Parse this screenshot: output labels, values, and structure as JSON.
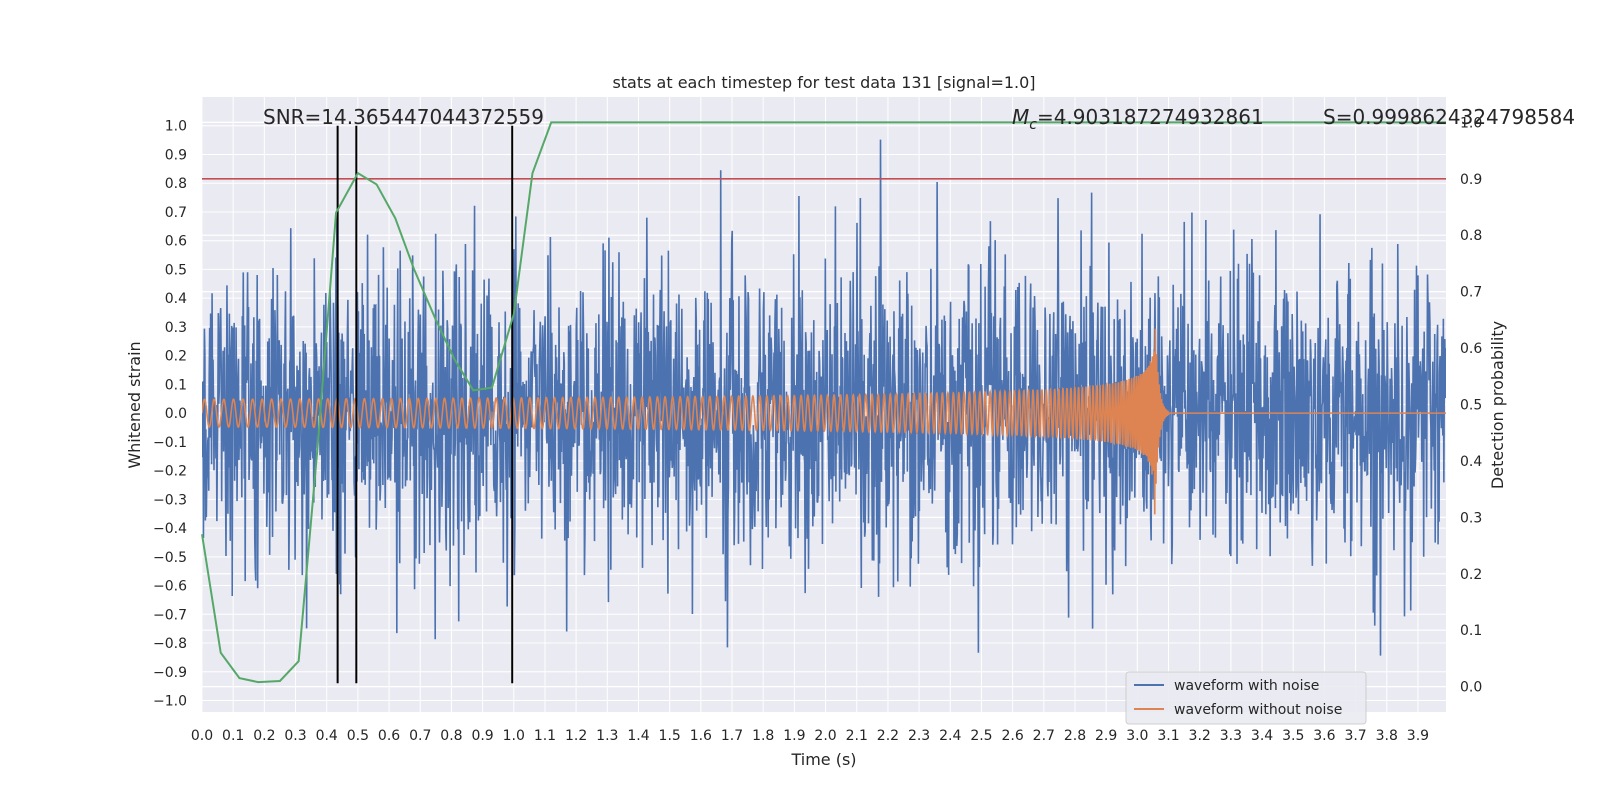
{
  "chart_data": {
    "type": "line",
    "title": "stats at each timestep for test data 131 [signal=1.0]",
    "xlabel": "Time (s)",
    "ylabel": "Whitened strain",
    "y2label": "Detection probability",
    "xlim": [
      0.0,
      3.99
    ],
    "ylim": [
      -1.04,
      1.1
    ],
    "y2lim": [
      -0.045,
      1.045
    ],
    "x_ticks": [
      0.0,
      0.1,
      0.2,
      0.3,
      0.4,
      0.5,
      0.6,
      0.7,
      0.8,
      0.9,
      1.0,
      1.1,
      1.2,
      1.3,
      1.4,
      1.5,
      1.6,
      1.7,
      1.8,
      1.9,
      2.0,
      2.1,
      2.2,
      2.3,
      2.4,
      2.5,
      2.6,
      2.7,
      2.8,
      2.9,
      3.0,
      3.1,
      3.2,
      3.3,
      3.4,
      3.5,
      3.6,
      3.7,
      3.8,
      3.9
    ],
    "x_tick_labels": [
      "0.0",
      "0.1",
      "0.2",
      "0.3",
      "0.4",
      "0.5",
      "0.6",
      "0.7",
      "0.8",
      "0.9",
      "1.0",
      "1.1",
      "1.2",
      "1.3",
      "1.4",
      "1.5",
      "1.6",
      "1.7",
      "1.8",
      "1.9",
      "2.0",
      "2.1",
      "2.2",
      "2.3",
      "2.4",
      "2.5",
      "2.6",
      "2.7",
      "2.8",
      "2.9",
      "3.0",
      "3.1",
      "3.2",
      "3.3",
      "3.4",
      "3.5",
      "3.6",
      "3.7",
      "3.8",
      "3.9"
    ],
    "y_ticks": [
      1.0,
      0.9,
      0.8,
      0.7,
      0.6,
      0.5,
      0.4,
      0.3,
      0.2,
      0.1,
      0.0,
      -0.1,
      -0.2,
      -0.3,
      -0.4,
      -0.5,
      -0.6,
      -0.7,
      -0.8,
      -0.9,
      -1.0
    ],
    "y_tick_labels": [
      "1.0",
      "0.9",
      "0.8",
      "0.7",
      "0.6",
      "0.5",
      "0.4",
      "0.3",
      "0.2",
      "0.1",
      "0.0",
      "−0.1",
      "−0.2",
      "−0.3",
      "−0.4",
      "−0.5",
      "−0.6",
      "−0.7",
      "−0.8",
      "−0.9",
      "−1.0"
    ],
    "y2_ticks": [
      1.0,
      0.9,
      0.8,
      0.7,
      0.6,
      0.5,
      0.4,
      0.3,
      0.2,
      0.1,
      0.0
    ],
    "y2_tick_labels": [
      "1.0",
      "0.9",
      "0.8",
      "0.7",
      "0.6",
      "0.5",
      "0.4",
      "0.3",
      "0.2",
      "0.1",
      "0.0"
    ],
    "grid": true,
    "legend": {
      "placement": "lower-right",
      "entries": [
        "waveform with noise",
        "waveform without noise"
      ]
    },
    "annotations": {
      "snr_text": "SNR=14.365447044372559",
      "mc_symbol": "M",
      "mc_subscript": "c",
      "mc_value": "=4.903187274932861",
      "s_text": "S=0.9998624324798584"
    },
    "series": [
      {
        "name": "waveform with noise",
        "axis": "left",
        "color": "#4c72b0",
        "description_values": {
          "sample_count": 0
        },
        "noise_seed": 131,
        "noise_sigma": 0.25,
        "x_range": [
          0.0,
          4.0
        ]
      },
      {
        "name": "waveform without noise",
        "axis": "left",
        "color": "#dd8452",
        "chirp": {
          "t_merger": 3.055,
          "amplitude_start": 0.048,
          "amplitude_peak": 0.38,
          "cycles_start_per_second": 32,
          "ringdown_end": 3.1
        }
      },
      {
        "name": "Detection probability",
        "axis": "right",
        "color": "#55a868",
        "x": [
          0.0,
          0.06,
          0.12,
          0.18,
          0.25,
          0.31,
          0.37,
          0.43,
          0.5,
          0.56,
          0.62,
          0.68,
          0.75,
          0.81,
          0.87,
          0.93,
          1.0,
          1.06,
          1.12,
          1.18,
          1.25,
          3.99
        ],
        "y": [
          0.27,
          0.06,
          0.015,
          0.008,
          0.01,
          0.045,
          0.42,
          0.84,
          0.91,
          0.89,
          0.83,
          0.74,
          0.65,
          0.58,
          0.525,
          0.53,
          0.66,
          0.91,
          1.0,
          1.0,
          1.0,
          1.0
        ]
      }
    ],
    "threshold_line": {
      "axis": "right",
      "value": 0.9,
      "color": "#c44e52"
    },
    "vertical_lines": {
      "x": [
        0.435,
        0.495,
        0.995
      ],
      "y_from": -0.94,
      "y_to": 1.0,
      "color": "#000000"
    }
  }
}
